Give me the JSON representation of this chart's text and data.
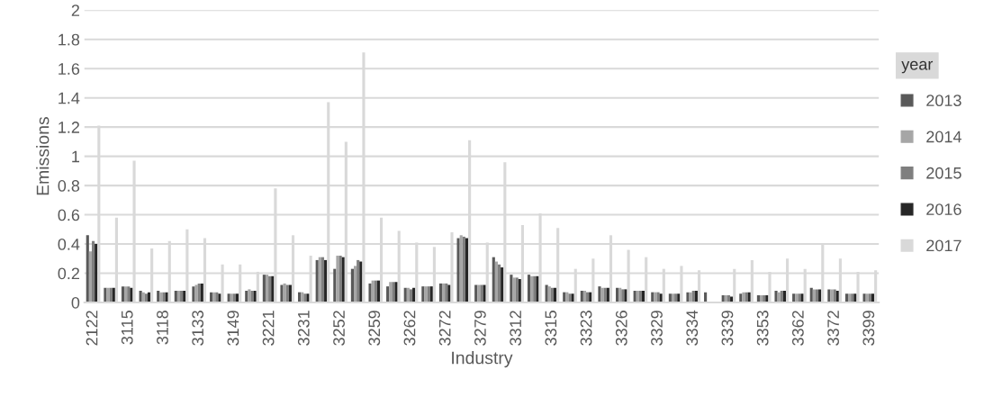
{
  "chart_data": {
    "type": "bar",
    "xlabel": "Industry",
    "ylabel": "Emissions",
    "legend_title": "year",
    "legend": "right",
    "grid": "y",
    "ylim": [
      0,
      2
    ],
    "yticks": [
      0,
      0.2,
      0.4,
      0.6,
      0.8,
      1,
      1.2,
      1.4,
      1.6,
      1.8,
      2
    ],
    "categories": [
      "2122",
      null,
      "3115",
      null,
      "3118",
      null,
      "3133",
      null,
      "3149",
      null,
      "3221",
      null,
      "3231",
      null,
      "3252",
      null,
      "3259",
      null,
      "3262",
      null,
      "3272",
      null,
      "3279",
      null,
      "3312",
      null,
      "3315",
      null,
      "3323",
      null,
      "3326",
      null,
      "3329",
      null,
      "3334",
      null,
      "3339",
      null,
      "3353",
      null,
      "3362",
      null,
      "3372",
      null,
      "3399"
    ],
    "series": [
      {
        "name": "2013",
        "color": "#595959",
        "values": [
          0.46,
          0.1,
          0.11,
          0.08,
          0.08,
          0.08,
          0.11,
          0.07,
          0.06,
          0.08,
          0.19,
          0.12,
          0.07,
          0.29,
          0.23,
          0.23,
          0.13,
          0.11,
          0.1,
          0.11,
          0.13,
          0.44,
          0.12,
          0.31,
          0.19,
          0.19,
          0.12,
          0.07,
          0.08,
          0.11,
          0.1,
          0.08,
          0.07,
          0.06,
          0.07,
          0.07,
          0.05,
          0.06,
          0.05,
          0.08,
          0.06,
          0.1,
          0.09,
          0.06,
          0.06
        ]
      },
      {
        "name": "2014",
        "color": "#a6a6a6",
        "values": [
          0.35,
          0.1,
          0.11,
          0.07,
          0.07,
          0.08,
          0.12,
          0.07,
          0.06,
          0.09,
          0.19,
          0.13,
          0.07,
          0.31,
          0.32,
          0.25,
          0.15,
          0.14,
          0.1,
          0.11,
          0.13,
          0.46,
          0.12,
          0.28,
          0.17,
          0.18,
          0.11,
          0.07,
          0.08,
          0.1,
          0.1,
          0.08,
          0.07,
          0.06,
          0.07,
          null,
          0.05,
          0.07,
          0.05,
          0.07,
          0.06,
          0.09,
          0.09,
          0.06,
          0.06
        ]
      },
      {
        "name": "2015",
        "color": "#7f7f7f",
        "values": [
          0.42,
          0.1,
          0.11,
          0.06,
          0.07,
          0.08,
          0.13,
          0.07,
          0.06,
          0.08,
          0.18,
          0.12,
          0.06,
          0.31,
          0.32,
          0.29,
          0.15,
          0.14,
          0.09,
          0.11,
          0.13,
          0.45,
          0.12,
          0.26,
          0.17,
          0.18,
          0.1,
          0.06,
          0.07,
          0.1,
          0.09,
          0.08,
          0.07,
          0.06,
          0.08,
          null,
          0.05,
          0.07,
          0.05,
          0.08,
          0.06,
          0.09,
          0.09,
          0.06,
          0.06
        ]
      },
      {
        "name": "2016",
        "color": "#262626",
        "values": [
          0.4,
          0.1,
          0.1,
          0.07,
          0.07,
          0.08,
          0.13,
          0.06,
          0.06,
          0.08,
          0.18,
          0.12,
          0.06,
          0.29,
          0.31,
          0.28,
          0.15,
          0.14,
          0.1,
          0.11,
          0.12,
          0.44,
          0.12,
          0.24,
          0.16,
          0.18,
          0.1,
          0.06,
          0.07,
          0.1,
          0.09,
          0.08,
          0.06,
          0.06,
          0.08,
          null,
          0.04,
          0.07,
          0.05,
          0.08,
          0.06,
          0.09,
          0.08,
          0.06,
          0.06
        ]
      },
      {
        "name": "2017",
        "color": "#d9d9d9",
        "values": [
          1.21,
          0.58,
          0.97,
          0.37,
          0.42,
          0.5,
          0.44,
          0.26,
          0.26,
          0.21,
          0.78,
          0.46,
          0.32,
          1.37,
          1.1,
          1.71,
          0.58,
          0.49,
          0.41,
          0.38,
          0.48,
          1.11,
          0.41,
          0.96,
          0.53,
          0.61,
          0.51,
          0.23,
          0.3,
          0.46,
          0.36,
          0.31,
          0.23,
          0.25,
          0.22,
          null,
          0.23,
          0.29,
          0.21,
          0.3,
          0.23,
          0.4,
          0.3,
          0.21,
          0.22
        ]
      }
    ]
  }
}
